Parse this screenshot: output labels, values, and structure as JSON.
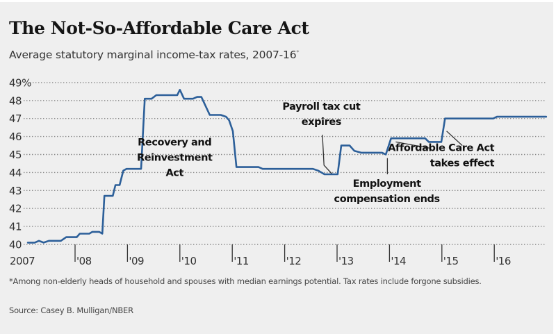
{
  "header": {
    "title": "The Not-So-Affordable Care Act",
    "subtitle": "Average statutory marginal income-tax rates, 2007-16",
    "subtitle_marker": "*"
  },
  "footer": {
    "footnote": "*Among non-elderly heads of household and spouses with median earnings potential. Tax rates include forgone subsidies.",
    "source": "Source: Casey B. Mulligan/NBER"
  },
  "colors": {
    "line": "#2c5f99",
    "background": "#efefef",
    "grid": "#8a8a8a",
    "text": "#333333"
  },
  "chart_data": {
    "type": "line",
    "title": "The Not-So-Affordable Care Act",
    "subtitle": "Average statutory marginal income-tax rates, 2007-16*",
    "xlabel": "",
    "ylabel": "",
    "xlim": [
      2007.0,
      2017.0
    ],
    "ylim": [
      40,
      49
    ],
    "grid": true,
    "legend": "none",
    "y_ticks": [
      {
        "value": 49,
        "label": "49%"
      },
      {
        "value": 48,
        "label": "48"
      },
      {
        "value": 47,
        "label": "47"
      },
      {
        "value": 46,
        "label": "46"
      },
      {
        "value": 45,
        "label": "45"
      },
      {
        "value": 44,
        "label": "44"
      },
      {
        "value": 43,
        "label": "43"
      },
      {
        "value": 42,
        "label": "42"
      },
      {
        "value": 41,
        "label": "41"
      },
      {
        "value": 40,
        "label": "40"
      }
    ],
    "x_ticks": [
      {
        "value": 2007,
        "label": "2007",
        "tick": false
      },
      {
        "value": 2008,
        "label": "'08",
        "tick": true
      },
      {
        "value": 2009,
        "label": "'09",
        "tick": true
      },
      {
        "value": 2010,
        "label": "'10",
        "tick": true
      },
      {
        "value": 2011,
        "label": "'11",
        "tick": true
      },
      {
        "value": 2012,
        "label": "'12",
        "tick": true
      },
      {
        "value": 2013,
        "label": "'13",
        "tick": true
      },
      {
        "value": 2014,
        "label": "'14",
        "tick": true
      },
      {
        "value": 2015,
        "label": "'15",
        "tick": true
      },
      {
        "value": 2016,
        "label": "'16",
        "tick": true
      }
    ],
    "series": [
      {
        "name": "Average statutory marginal income-tax rate (%)",
        "x": [
          2007.1,
          2007.23,
          2007.31,
          2007.4,
          2007.5,
          2007.73,
          2007.83,
          2008.03,
          2008.09,
          2008.27,
          2008.33,
          2008.46,
          2008.52,
          2008.56,
          2008.72,
          2008.77,
          2008.85,
          2008.92,
          2008.98,
          2009.26,
          2009.33,
          2009.46,
          2009.55,
          2009.95,
          2010.0,
          2010.08,
          2010.25,
          2010.33,
          2010.41,
          2010.57,
          2010.78,
          2010.88,
          2010.94,
          2011.01,
          2011.08,
          2011.5,
          2011.58,
          2012.54,
          2012.64,
          2012.76,
          2013.01,
          2013.08,
          2013.24,
          2013.33,
          2013.46,
          2013.86,
          2013.93,
          2014.03,
          2014.68,
          2014.75,
          2014.99,
          2015.06,
          2015.98,
          2016.05,
          2016.99
        ],
        "values": [
          40.1,
          40.1,
          40.2,
          40.1,
          40.2,
          40.2,
          40.4,
          40.4,
          40.6,
          40.6,
          40.7,
          40.7,
          40.6,
          42.7,
          42.7,
          43.3,
          43.3,
          44.1,
          44.2,
          44.2,
          48.1,
          48.1,
          48.3,
          48.3,
          48.6,
          48.1,
          48.1,
          48.2,
          48.2,
          47.2,
          47.2,
          47.1,
          46.9,
          46.3,
          44.3,
          44.3,
          44.2,
          44.2,
          44.1,
          43.9,
          43.9,
          45.5,
          45.5,
          45.2,
          45.1,
          45.1,
          45.0,
          45.9,
          45.9,
          45.7,
          45.7,
          47.0,
          47.0,
          47.1,
          47.1
        ]
      }
    ],
    "annotations": [
      {
        "lines": [
          "Recovery and",
          "Reinvestment",
          "Act"
        ],
        "anchor": {
          "x": 2009.9,
          "y": 45.5
        },
        "align": "middle",
        "leader": []
      },
      {
        "lines": [
          "Payroll tax cut",
          "expires"
        ],
        "anchor": {
          "x": 2012.7,
          "y": 47.5
        },
        "align": "middle",
        "leader": [
          {
            "x": 2012.72,
            "y": 46.1
          },
          {
            "x": 2012.75,
            "y": 44.4
          },
          {
            "x": 2012.91,
            "y": 43.9
          }
        ]
      },
      {
        "lines": [
          "Employment",
          "compensation ends"
        ],
        "anchor": {
          "x": 2013.95,
          "y": 43.2
        },
        "align": "middle",
        "leader": [
          {
            "x": 2013.96,
            "y": 44.8
          },
          {
            "x": 2013.96,
            "y": 43.9
          }
        ]
      },
      {
        "lines": [
          "Affordable Care Act",
          "takes effect"
        ],
        "anchor": {
          "x": 2016.0,
          "y": 45.2
        },
        "align": "end",
        "leader": [
          {
            "x": 2014.12,
            "y": 45.7
          },
          {
            "x": 2014.77,
            "y": 45.35
          }
        ]
      },
      {
        "lines": [],
        "anchor": {
          "x": 2015.09,
          "y": 46.3
        },
        "align": "end",
        "leader": [
          {
            "x": 2015.09,
            "y": 46.3
          },
          {
            "x": 2015.39,
            "y": 45.5
          }
        ]
      }
    ]
  }
}
